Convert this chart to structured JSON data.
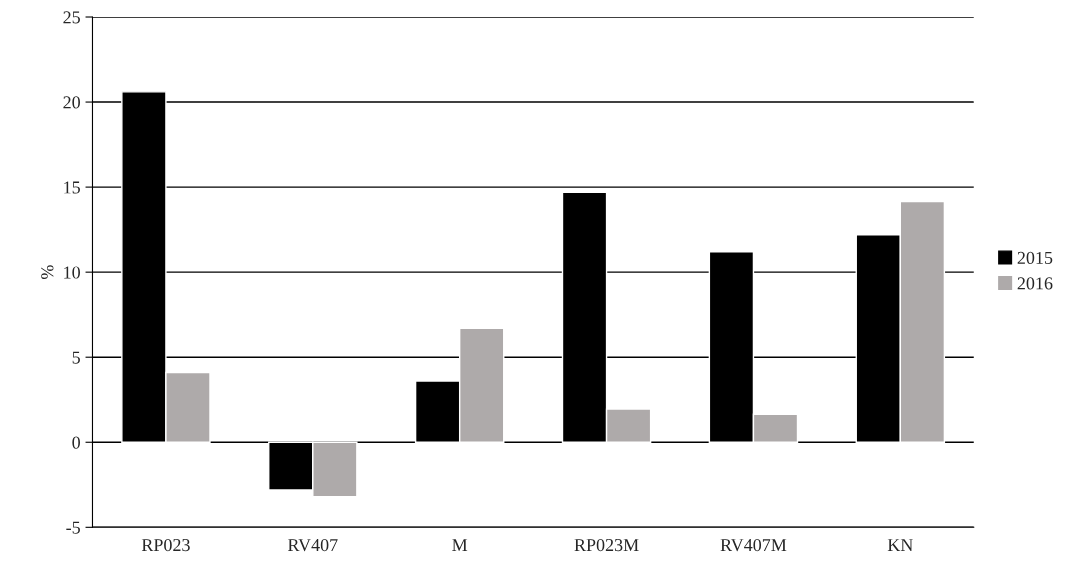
{
  "chart_data": {
    "type": "bar",
    "ylabel": "%",
    "categories": [
      "RP023",
      "RV407",
      "M",
      "RP023M",
      "RV407M",
      "KN"
    ],
    "series": [
      {
        "name": "2015",
        "color": "#000000",
        "values": [
          20.6,
          -2.8,
          3.6,
          14.7,
          11.2,
          12.2
        ]
      },
      {
        "name": "2016",
        "color": "#aeaaaa",
        "values": [
          4.1,
          -3.2,
          6.7,
          1.95,
          1.65,
          14.15
        ]
      }
    ],
    "ylim": [
      -5,
      25
    ],
    "yticks": [
      -5,
      0,
      5,
      10,
      15,
      20,
      25
    ],
    "grid": "y",
    "legend": "right"
  }
}
